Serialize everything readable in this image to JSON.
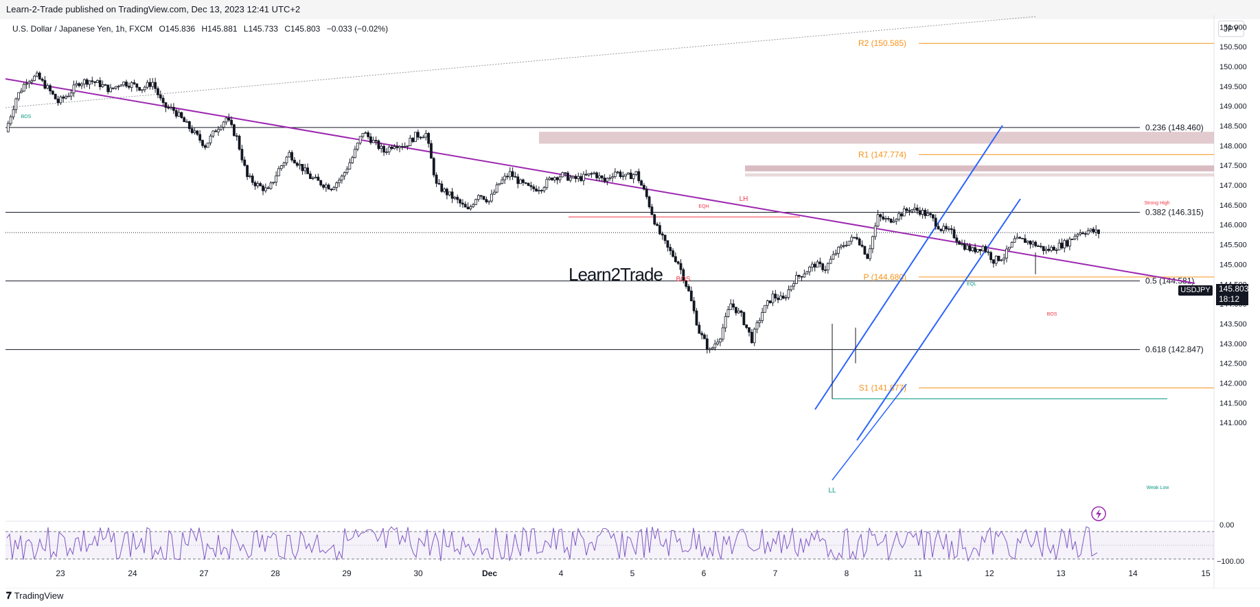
{
  "header": {
    "publisher": "Learn-2-Trade published on TradingView.com, Dec 13, 2023 12:41 UTC+2",
    "symbol": "U.S. Dollar / Japanese Yen, 1h, FXCM",
    "open": "O145.836",
    "high": "H145.881",
    "low": "L145.733",
    "close": "C145.803",
    "change": "−0.033 (−0.02%)",
    "currency": "JPY"
  },
  "price_tag": {
    "symbol": "USDJPY",
    "price": "145.803",
    "countdown": "18:12"
  },
  "watermark": "Learn2Trade",
  "footer": {
    "logo": "TradingView"
  },
  "colors": {
    "bull": "#089981",
    "bear": "#f23645",
    "candle": "#131722",
    "trend": "#9c27b0",
    "channel": "#2962ff",
    "pivot": "#f7931a",
    "zone": "#c9a0a6"
  },
  "chart_data": {
    "type": "candlestick",
    "ylim": [
      140.5,
      151.3
    ],
    "y_ticks": [
      "151.000",
      "150.500",
      "150.000",
      "149.500",
      "149.000",
      "148.500",
      "148.000",
      "147.500",
      "147.000",
      "146.500",
      "146.000",
      "145.500",
      "145.000",
      "144.500",
      "144.000",
      "143.500",
      "143.000",
      "142.500",
      "142.000",
      "141.500",
      "141.000"
    ],
    "y_tick_values": [
      151,
      150.5,
      150,
      149.5,
      149,
      148.5,
      148,
      147.5,
      147,
      146.5,
      146,
      145.5,
      145,
      144.5,
      144,
      143.5,
      143,
      142.5,
      142,
      141.5,
      141
    ],
    "x_ticks": [
      "23",
      "24",
      "27",
      "28",
      "29",
      "30",
      "Dec",
      "4",
      "5",
      "6",
      "7",
      "8",
      "11",
      "12",
      "13",
      "14",
      "15"
    ],
    "fib_levels": [
      {
        "label": "0.236 (148.460)",
        "value": 148.46
      },
      {
        "label": "0.382 (146.315)",
        "value": 146.315
      },
      {
        "label": "0.5 (144.581)",
        "value": 144.581
      },
      {
        "label": "0.618 (142.847)",
        "value": 142.847
      }
    ],
    "pivots": [
      {
        "label": "R2 (150.585)",
        "value": 150.585
      },
      {
        "label": "R1 (147.774)",
        "value": 147.774
      },
      {
        "label": "P (144.680)",
        "value": 144.68
      },
      {
        "label": "S1 (141.877)",
        "value": 141.877
      }
    ],
    "annotations": [
      {
        "text": "BOS",
        "color": "#089981"
      },
      {
        "text": "EQH",
        "color": "#f23645"
      },
      {
        "text": "LH",
        "color": "#f23645"
      },
      {
        "text": "BOS",
        "color": "#f23645"
      },
      {
        "text": "Strong High",
        "color": "#f23645"
      },
      {
        "text": "EQL",
        "color": "#089981"
      },
      {
        "text": "BOS",
        "color": "#f23645"
      },
      {
        "text": "LL",
        "color": "#089981"
      },
      {
        "text": "Weak Low",
        "color": "#089981"
      }
    ],
    "close_path": [
      [
        0,
        148.35
      ],
      [
        2,
        149.2
      ],
      [
        4,
        149.65
      ],
      [
        6,
        149.75
      ],
      [
        8,
        149.45
      ],
      [
        10,
        149.1
      ],
      [
        12,
        149.3
      ],
      [
        14,
        149.6
      ],
      [
        16,
        149.65
      ],
      [
        18,
        149.55
      ],
      [
        20,
        149.4
      ],
      [
        22,
        149.6
      ],
      [
        24,
        149.55
      ],
      [
        26,
        149.45
      ],
      [
        28,
        149.6
      ],
      [
        30,
        149.0
      ],
      [
        32,
        148.9
      ],
      [
        34,
        148.6
      ],
      [
        36,
        148.3
      ],
      [
        38,
        148.0
      ],
      [
        40,
        148.4
      ],
      [
        42,
        148.7
      ],
      [
        44,
        148.2
      ],
      [
        46,
        147.2
      ],
      [
        48,
        147.0
      ],
      [
        50,
        146.85
      ],
      [
        52,
        147.4
      ],
      [
        54,
        147.8
      ],
      [
        56,
        147.5
      ],
      [
        58,
        147.2
      ],
      [
        60,
        147.05
      ],
      [
        62,
        146.95
      ],
      [
        64,
        147.2
      ],
      [
        66,
        147.7
      ],
      [
        68,
        148.35
      ],
      [
        70,
        148.1
      ],
      [
        72,
        147.85
      ],
      [
        74,
        148.05
      ],
      [
        76,
        148.0
      ],
      [
        78,
        148.25
      ],
      [
        80,
        148.3
      ],
      [
        82,
        147.0
      ],
      [
        84,
        146.8
      ],
      [
        86,
        146.6
      ],
      [
        88,
        146.35
      ],
      [
        90,
        146.8
      ],
      [
        92,
        146.6
      ],
      [
        94,
        147.05
      ],
      [
        96,
        147.3
      ],
      [
        98,
        147.05
      ],
      [
        100,
        146.9
      ],
      [
        102,
        146.95
      ],
      [
        104,
        147.2
      ],
      [
        106,
        147.25
      ],
      [
        108,
        147.15
      ],
      [
        110,
        147.2
      ],
      [
        112,
        147.3
      ],
      [
        114,
        147.1
      ],
      [
        116,
        147.35
      ],
      [
        118,
        147.2
      ],
      [
        120,
        147.3
      ],
      [
        122,
        146.7
      ],
      [
        124,
        145.9
      ],
      [
        126,
        145.4
      ],
      [
        128,
        145.05
      ],
      [
        130,
        144.3
      ],
      [
        132,
        143.3
      ],
      [
        134,
        142.8
      ],
      [
        136,
        143.2
      ],
      [
        138,
        144.0
      ],
      [
        140,
        143.7
      ],
      [
        142,
        143.1
      ],
      [
        144,
        143.8
      ],
      [
        146,
        144.2
      ],
      [
        148,
        144.1
      ],
      [
        150,
        144.6
      ],
      [
        152,
        144.8
      ],
      [
        154,
        145.0
      ],
      [
        156,
        144.9
      ],
      [
        158,
        145.3
      ],
      [
        160,
        145.55
      ],
      [
        162,
        145.7
      ],
      [
        164,
        145.2
      ],
      [
        166,
        146.2
      ],
      [
        168,
        146.1
      ],
      [
        170,
        146.25
      ],
      [
        172,
        146.4
      ],
      [
        174,
        146.35
      ],
      [
        176,
        146.2
      ],
      [
        178,
        145.9
      ],
      [
        180,
        145.8
      ],
      [
        182,
        145.5
      ],
      [
        184,
        145.35
      ],
      [
        186,
        145.45
      ],
      [
        188,
        145.1
      ],
      [
        190,
        145.2
      ],
      [
        192,
        145.6
      ],
      [
        194,
        145.6
      ],
      [
        196,
        145.5
      ],
      [
        198,
        145.35
      ],
      [
        200,
        145.45
      ],
      [
        202,
        145.55
      ],
      [
        204,
        145.8
      ],
      [
        206,
        145.85
      ],
      [
        208,
        145.8
      ]
    ],
    "oscillator": {
      "ylim": [
        -100,
        0
      ],
      "y_ticks": [
        "0.00",
        "−100.00"
      ]
    }
  }
}
